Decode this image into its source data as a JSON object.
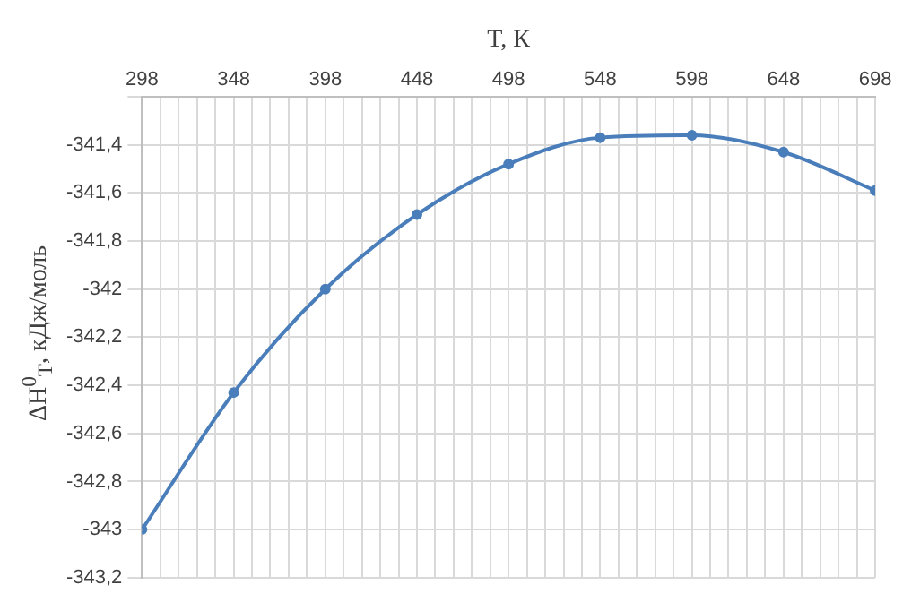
{
  "chart_data": {
    "type": "line",
    "xlabel": "T, К",
    "ylabel": "ΔH$^{0}$$_{T}$, кДж/моль",
    "x": [
      298,
      348,
      398,
      448,
      498,
      548,
      598,
      648,
      698
    ],
    "series": [
      {
        "color": "#4a7ebb",
        "values": [
          -343.0,
          -342.43,
          -342.0,
          -341.69,
          -341.48,
          -341.37,
          -341.36,
          -341.43,
          -341.59
        ]
      }
    ],
    "xlim": [
      298,
      698
    ],
    "xticks": [
      298,
      {
        "value": 308,
        "label": null
      },
      {
        "value": 318,
        "label": null
      },
      {
        "value": 328,
        "label": null
      },
      {
        "value": 338,
        "label": null
      },
      348,
      {
        "value": 358,
        "label": null
      },
      {
        "value": 368,
        "label": null
      },
      {
        "value": 378,
        "label": null
      },
      {
        "value": 388,
        "label": null
      },
      398,
      {
        "value": 408,
        "label": null
      },
      {
        "value": 418,
        "label": null
      },
      {
        "value": 428,
        "label": null
      },
      {
        "value": 438,
        "label": null
      },
      448,
      {
        "value": 458,
        "label": null
      },
      {
        "value": 468,
        "label": null
      },
      {
        "value": 478,
        "label": null
      },
      {
        "value": 488,
        "label": null
      },
      498,
      {
        "value": 508,
        "label": null
      },
      {
        "value": 518,
        "label": null
      },
      {
        "value": 528,
        "label": null
      },
      {
        "value": 538,
        "label": null
      },
      548,
      {
        "value": 558,
        "label": null
      },
      {
        "value": 568,
        "label": null
      },
      {
        "value": 578,
        "label": null
      },
      {
        "value": 588,
        "label": null
      },
      598,
      {
        "value": 608,
        "label": null
      },
      {
        "value": 618,
        "label": null
      },
      {
        "value": 628,
        "label": null
      },
      {
        "value": 638,
        "label": null
      },
      648,
      {
        "value": 658,
        "label": null
      },
      {
        "value": 668,
        "label": null
      },
      {
        "value": 678,
        "label": null
      },
      {
        "value": 688,
        "label": null
      },
      698
    ],
    "ylim": [
      -343.2,
      -341.2
    ],
    "yticks": [
      {
        "value": -343.2,
        "label": "-343,2"
      },
      {
        "value": -343,
        "label": "-343"
      },
      {
        "value": -342.8,
        "label": "-342,8"
      },
      {
        "value": -342.6,
        "label": "-342,6"
      },
      {
        "value": -342.4,
        "label": "-342,4"
      },
      {
        "value": -342.2,
        "label": "-342,2"
      },
      {
        "value": -342,
        "label": "-342"
      },
      {
        "value": -341.8,
        "label": "-341,8"
      },
      {
        "value": -341.6,
        "label": "-341,6"
      },
      {
        "value": -341.4,
        "label": "-341,4"
      },
      {
        "value": -341.2,
        "label": null
      }
    ],
    "grid": true,
    "legend": false,
    "marker": "circle",
    "line_style": "solid"
  }
}
